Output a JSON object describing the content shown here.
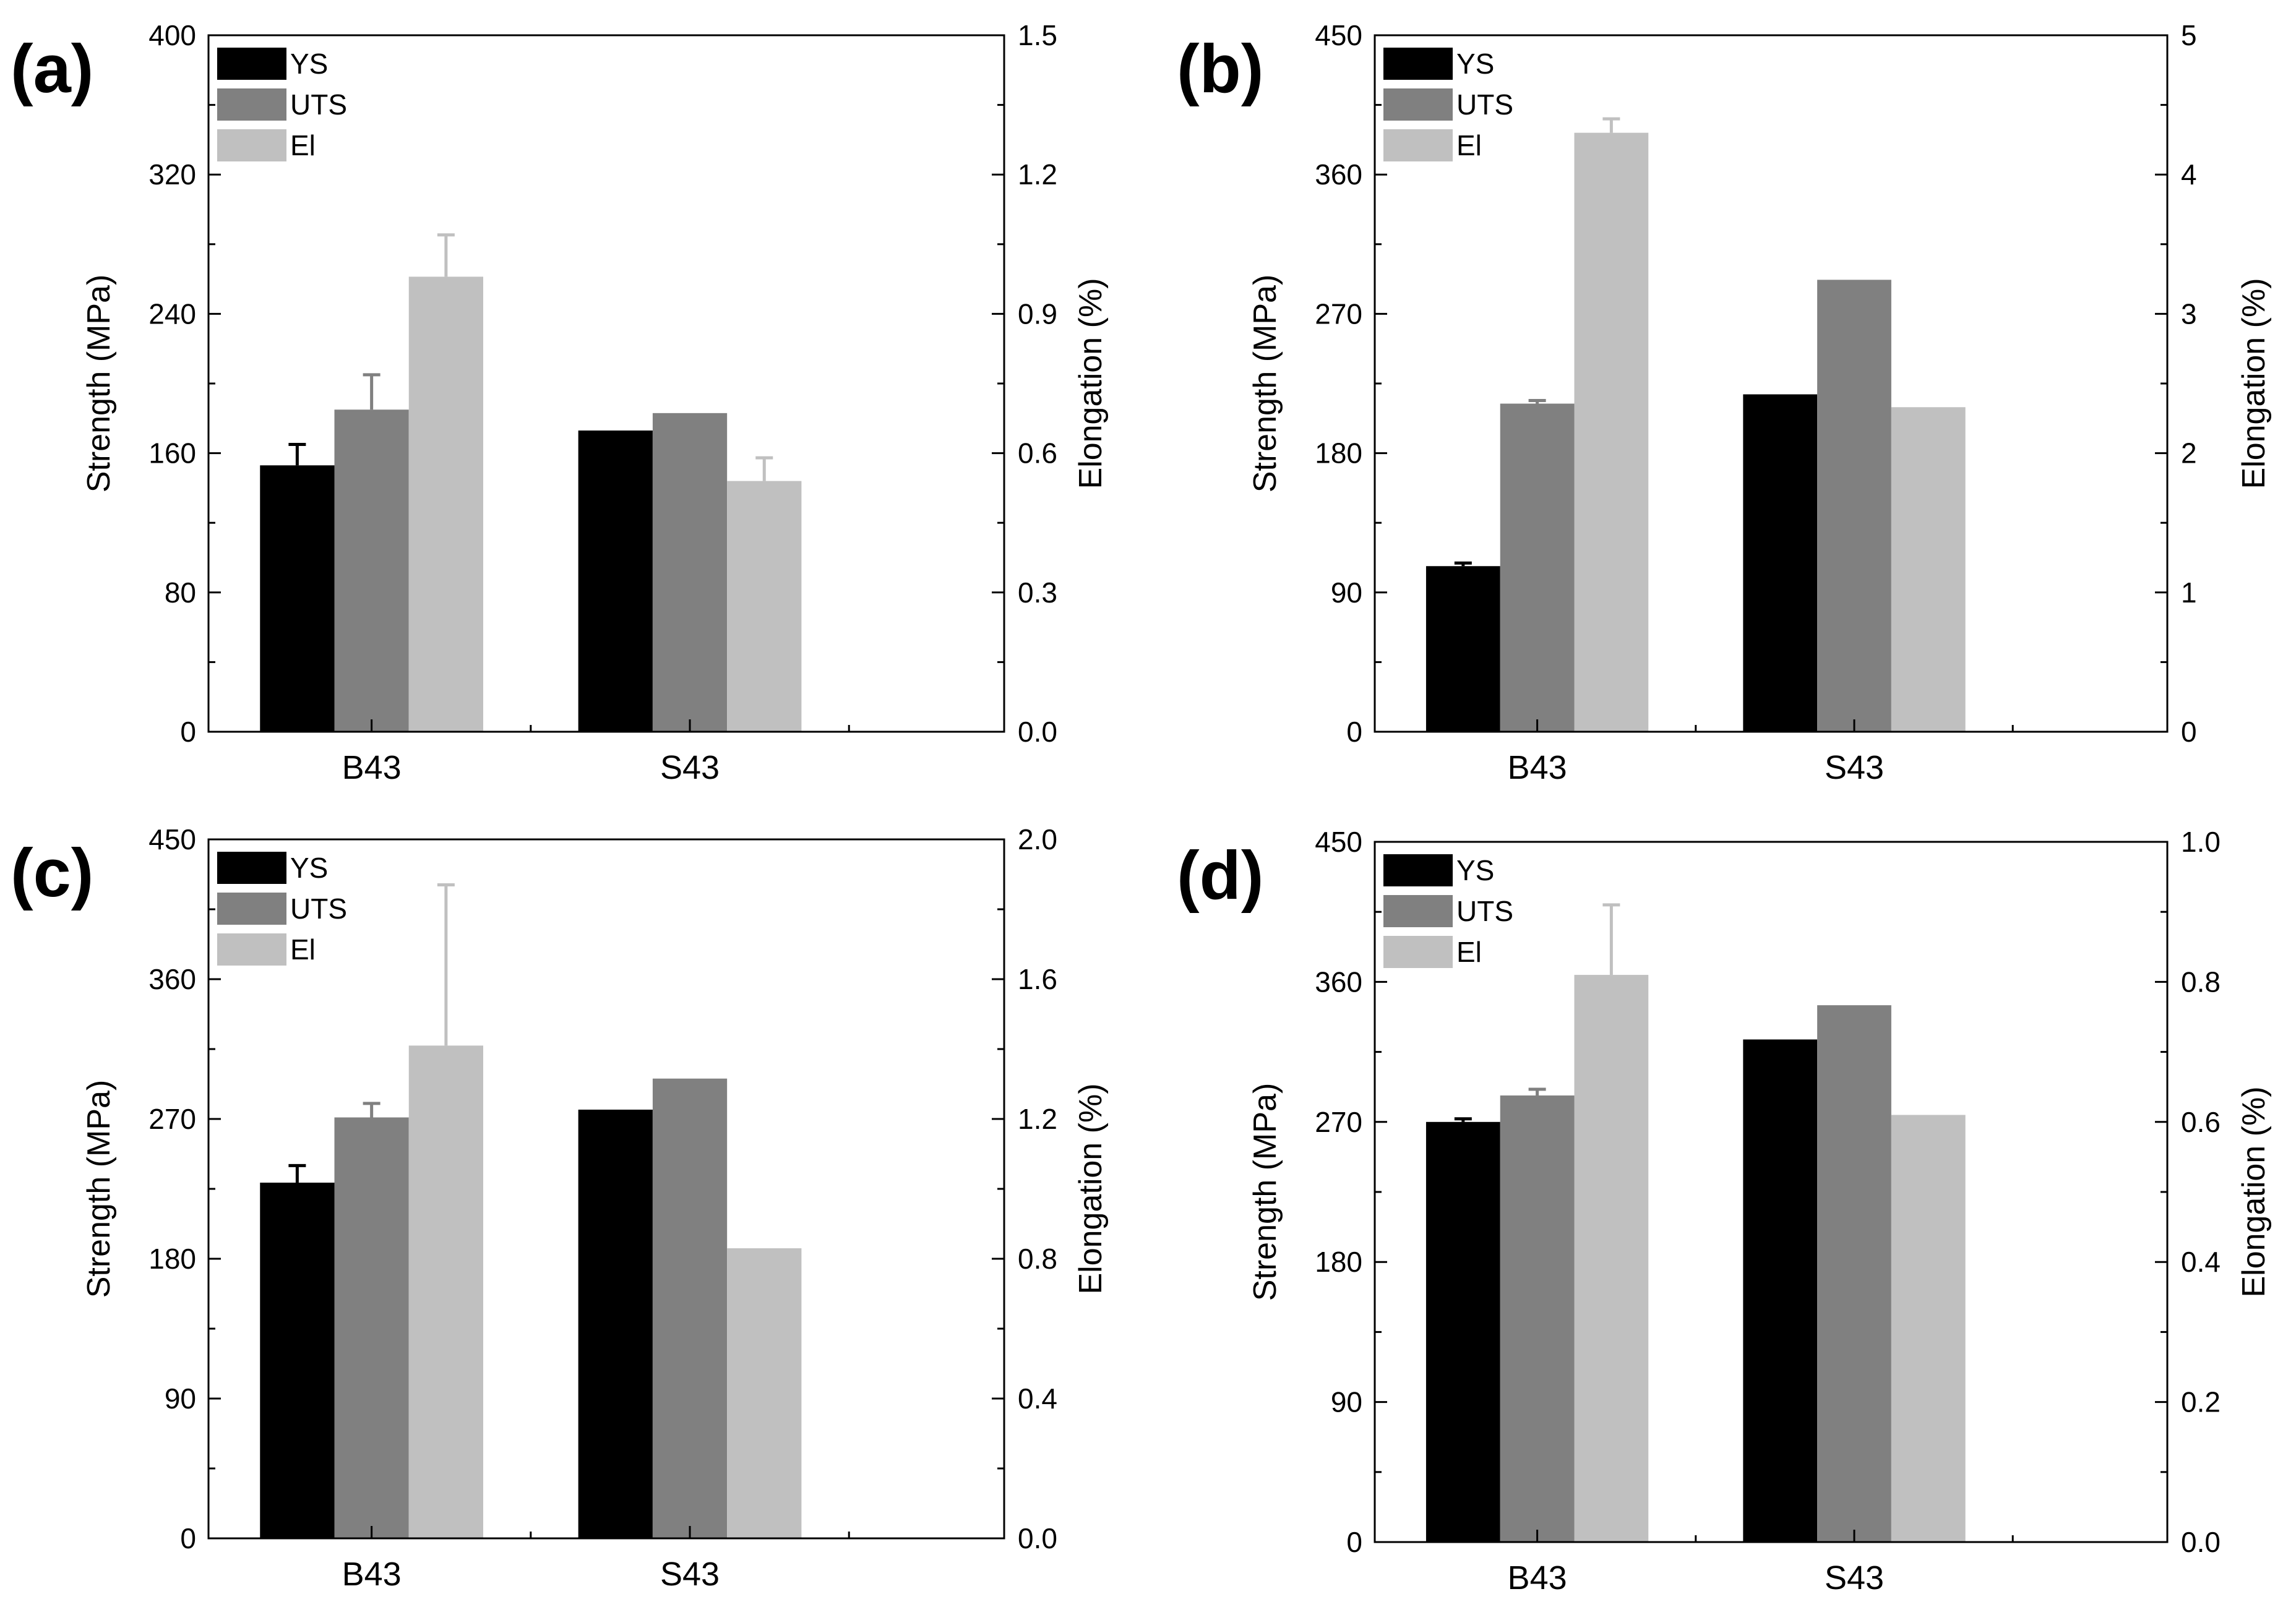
{
  "legend": [
    {
      "key": "ys",
      "label": "YS",
      "color": "#000000"
    },
    {
      "key": "uts",
      "label": "UTS",
      "color": "#808080"
    },
    {
      "key": "el",
      "label": "El",
      "color": "#c0c0c0"
    }
  ],
  "chart_data": [
    {
      "panel": "(a)",
      "type": "bar",
      "categories": [
        "B43",
        "S43"
      ],
      "ylabel": "Strength (MPa)",
      "y2label": "Elongation (%)",
      "ylim": [
        0,
        400
      ],
      "y2lim": [
        0,
        1.5
      ],
      "yticks": [
        "0",
        "80",
        "160",
        "240",
        "320",
        "400"
      ],
      "y2ticks": [
        "0.0",
        "0.3",
        "0.6",
        "0.9",
        "1.2",
        "1.5"
      ],
      "series": [
        {
          "name": "YS",
          "axis": "left",
          "values": [
            153,
            173
          ],
          "errors": [
            12,
            0
          ]
        },
        {
          "name": "UTS",
          "axis": "left",
          "values": [
            185,
            183
          ],
          "errors": [
            20,
            0
          ]
        },
        {
          "name": "El",
          "axis": "right",
          "values": [
            0.98,
            0.54
          ],
          "errors": [
            0.09,
            0.05
          ]
        }
      ]
    },
    {
      "panel": "(b)",
      "type": "bar",
      "categories": [
        "B43",
        "S43"
      ],
      "ylabel": "Strength (MPa)",
      "y2label": "Elongation (%)",
      "ylim": [
        0,
        450
      ],
      "y2lim": [
        0,
        5
      ],
      "yticks": [
        "0",
        "90",
        "180",
        "270",
        "360",
        "450"
      ],
      "y2ticks": [
        "0",
        "1",
        "2",
        "3",
        "4",
        "5"
      ],
      "series": [
        {
          "name": "YS",
          "axis": "left",
          "values": [
            107,
            218
          ],
          "errors": [
            2,
            0
          ]
        },
        {
          "name": "UTS",
          "axis": "left",
          "values": [
            212,
            292
          ],
          "errors": [
            2,
            0
          ]
        },
        {
          "name": "El",
          "axis": "right",
          "values": [
            4.3,
            2.33
          ],
          "errors": [
            0.1,
            0
          ]
        }
      ]
    },
    {
      "panel": "(c)",
      "type": "bar",
      "categories": [
        "B43",
        "S43"
      ],
      "ylabel": "Strength (MPa)",
      "y2label": "Elongation (%)",
      "ylim": [
        0,
        450
      ],
      "y2lim": [
        0,
        2.0
      ],
      "yticks": [
        "0",
        "90",
        "180",
        "270",
        "360",
        "450"
      ],
      "y2ticks": [
        "0.0",
        "0.4",
        "0.8",
        "1.2",
        "1.6",
        "2.0"
      ],
      "series": [
        {
          "name": "YS",
          "axis": "left",
          "values": [
            229,
            276
          ],
          "errors": [
            11,
            0
          ]
        },
        {
          "name": "UTS",
          "axis": "left",
          "values": [
            271,
            296
          ],
          "errors": [
            9,
            0
          ]
        },
        {
          "name": "El",
          "axis": "right",
          "values": [
            1.41,
            0.83
          ],
          "errors": [
            0.46,
            0
          ]
        }
      ]
    },
    {
      "panel": "(d)",
      "type": "bar",
      "categories": [
        "B43",
        "S43"
      ],
      "ylabel": "Strength (MPa)",
      "y2label": "Elongation (%)",
      "ylim": [
        0,
        450
      ],
      "y2lim": [
        0,
        1.0
      ],
      "yticks": [
        "0",
        "90",
        "180",
        "270",
        "360",
        "450"
      ],
      "y2ticks": [
        "0.0",
        "0.2",
        "0.4",
        "0.6",
        "0.8",
        "1.0"
      ],
      "series": [
        {
          "name": "YS",
          "axis": "left",
          "values": [
            270,
            323
          ],
          "errors": [
            2,
            0
          ]
        },
        {
          "name": "UTS",
          "axis": "left",
          "values": [
            287,
            345
          ],
          "errors": [
            4,
            0
          ]
        },
        {
          "name": "El",
          "axis": "right",
          "values": [
            0.81,
            0.61
          ],
          "errors": [
            0.1,
            0
          ]
        }
      ]
    }
  ]
}
